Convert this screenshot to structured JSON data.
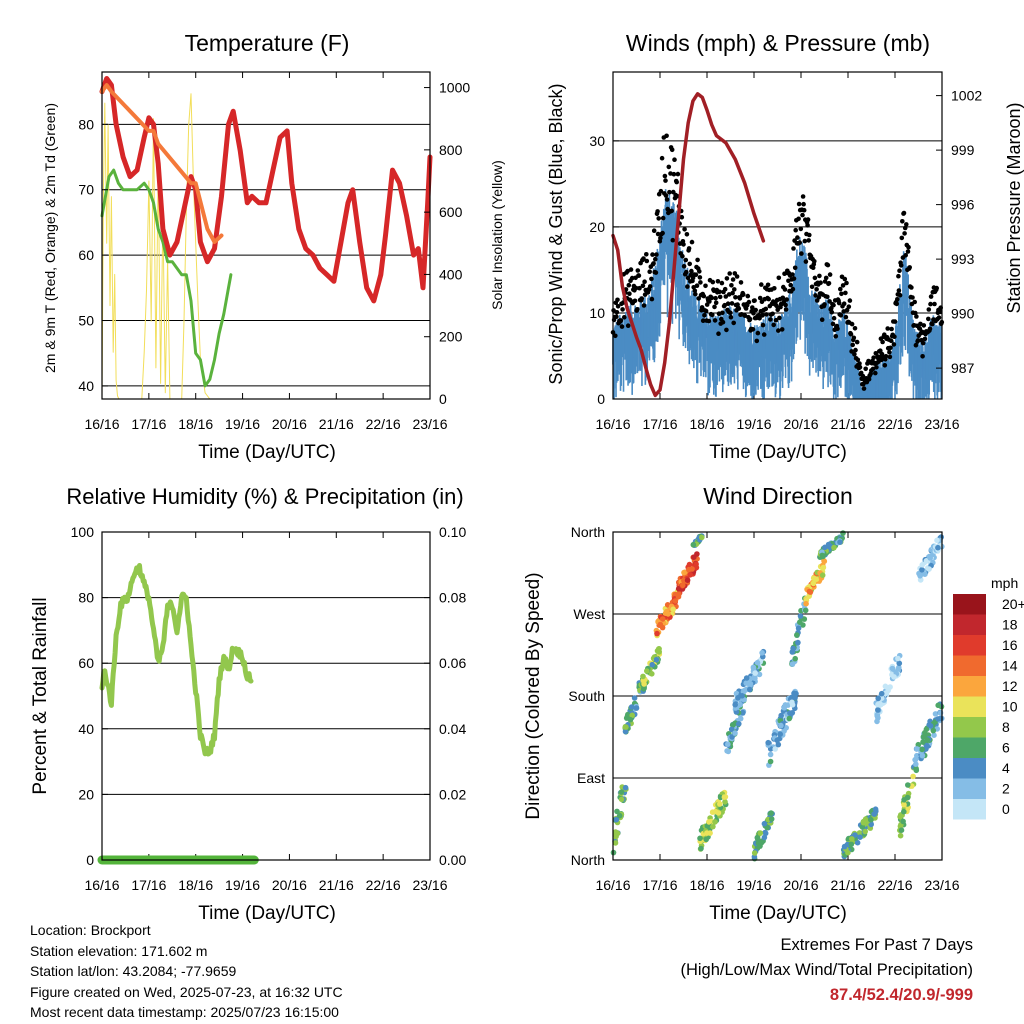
{
  "figure": {
    "location": "Location: Brockport",
    "elevation": "Station elevation: 171.602 m",
    "latlon": "Station lat/lon: 43.2084; -77.9659",
    "created": "Figure created on Wed, 2025-07-23, at 16:32 UTC",
    "recent": "Most recent data timestamp: 2025/07/23 16:15:00",
    "extremes_title": "Extremes For Past 7 Days",
    "extremes_subtitle": "(High/Low/Max Wind/Total Precipitation)",
    "extremes_values": "87.4/52.4/20.9/-999"
  },
  "chart_data": [
    {
      "id": "temperature",
      "type": "line",
      "title": "Temperature (F)",
      "xlabel": "Time (Day/UTC)",
      "ylabel": "2m & 9m T (Red, Orange) & 2m Td (Green)",
      "y2label": "Solar Insolation (Yellow)",
      "x_ticks": [
        "16/16",
        "17/16",
        "18/16",
        "19/16",
        "20/16",
        "21/16",
        "22/16",
        "23/16"
      ],
      "xlim": [
        0,
        7
      ],
      "ylim": [
        38,
        88
      ],
      "y_ticks": [
        40,
        50,
        60,
        70,
        80
      ],
      "y2lim": [
        0,
        1050
      ],
      "y2_ticks": [
        0,
        200,
        400,
        600,
        800,
        1000
      ],
      "grid": "horizontal",
      "series": [
        {
          "color": "#d62728",
          "x": [
            0.0,
            0.1,
            0.2,
            0.3,
            0.45,
            0.6,
            0.75,
            0.9,
            1.0,
            1.1,
            1.2,
            1.3,
            1.45,
            1.6,
            1.75,
            1.9,
            2.0,
            2.1,
            2.25,
            2.4,
            2.55,
            2.7,
            2.8,
            2.95,
            3.1,
            3.2,
            3.35,
            3.5,
            3.65,
            3.8,
            3.95,
            4.05,
            4.2,
            4.35,
            4.5,
            4.65,
            4.8,
            4.95,
            5.1,
            5.25,
            5.35,
            5.5,
            5.65,
            5.8,
            5.95,
            6.05,
            6.2,
            6.35,
            6.5,
            6.65,
            6.75,
            6.85,
            6.95,
            7.0
          ],
          "y": [
            85,
            87,
            86,
            80,
            75,
            72,
            73,
            78,
            81,
            80,
            74,
            64,
            60,
            62,
            67,
            72,
            70,
            62,
            59,
            61,
            69,
            80,
            82,
            76,
            68,
            69,
            68,
            68,
            73,
            78,
            79,
            71,
            64,
            61,
            60,
            58,
            57,
            56,
            62,
            68,
            70,
            62,
            55,
            53,
            57,
            63,
            73,
            71,
            66,
            60,
            61,
            55,
            68,
            75
          ]
        },
        {
          "color": "#f4793a",
          "x": [
            0.0,
            0.1,
            0.2,
            1.0,
            1.1,
            1.2,
            1.9,
            2.0,
            2.25,
            2.4,
            2.55
          ],
          "y": [
            85,
            86,
            85,
            79,
            79,
            77,
            71,
            71,
            64,
            62,
            63
          ]
        },
        {
          "color": "#5ab23d",
          "x": [
            0.0,
            0.05,
            0.15,
            0.25,
            0.35,
            0.45,
            0.6,
            0.75,
            0.9,
            1.0,
            1.1,
            1.2,
            1.3,
            1.4,
            1.5,
            1.6,
            1.7,
            1.8,
            1.9,
            2.0,
            2.1,
            2.2,
            2.3,
            2.4,
            2.5,
            2.6,
            2.7,
            2.75
          ],
          "y": [
            66,
            68,
            72,
            73,
            71,
            70,
            70,
            70,
            71,
            70,
            68,
            64,
            62,
            59,
            59,
            58,
            57,
            57,
            53,
            45,
            44,
            40,
            41,
            44,
            48,
            51,
            55,
            57
          ]
        }
      ],
      "insolation": {
        "color": "#f2de5a",
        "x": [
          0.0,
          0.03,
          0.06,
          0.1,
          0.13,
          0.17,
          0.2,
          0.24,
          0.27,
          0.3,
          0.33,
          0.36,
          0.4,
          0.45,
          0.55,
          0.7,
          0.85,
          0.9,
          0.95,
          1.0,
          1.05,
          1.1,
          1.15,
          1.2,
          1.25,
          1.3,
          1.35,
          1.4,
          1.45,
          1.5,
          1.6,
          1.7,
          1.75,
          1.8,
          1.85,
          1.9,
          1.95,
          2.0,
          2.05,
          2.1,
          2.2,
          2.3,
          2.5,
          2.7
        ],
        "y": [
          0,
          650,
          950,
          500,
          880,
          300,
          650,
          150,
          400,
          60,
          10,
          0,
          0,
          0,
          0,
          0,
          0,
          150,
          350,
          700,
          250,
          900,
          100,
          750,
          50,
          600,
          20,
          450,
          0,
          0,
          0,
          0,
          250,
          600,
          880,
          980,
          700,
          500,
          300,
          130,
          20,
          0,
          0,
          0
        ]
      }
    },
    {
      "id": "winds",
      "type": "scatter",
      "title": "Winds (mph) & Pressure (mb)",
      "xlabel": "Time (Day/UTC)",
      "ylabel": "Sonic/Prop Wind & Gust (Blue, Black)",
      "y2label": "Station Pressure (Maroon)",
      "x_ticks": [
        "16/16",
        "17/16",
        "18/16",
        "19/16",
        "20/16",
        "21/16",
        "22/16",
        "23/16"
      ],
      "xlim": [
        0,
        7
      ],
      "ylim": [
        0,
        38
      ],
      "y_ticks": [
        0,
        10,
        20,
        30
      ],
      "y2lim": [
        985.3,
        1003.3
      ],
      "y2_ticks": [
        987,
        990,
        993,
        996,
        999,
        1002
      ],
      "grid": "horizontal",
      "wind_envelope": {
        "x": [
          0.0,
          0.3,
          0.6,
          0.8,
          0.9,
          1.0,
          1.1,
          1.2,
          1.35,
          1.5,
          1.7,
          1.9,
          2.2,
          2.5,
          2.8,
          3.0,
          3.3,
          3.6,
          3.8,
          3.9,
          4.0,
          4.1,
          4.2,
          4.4,
          4.6,
          4.7,
          4.9,
          5.1,
          5.3,
          5.5,
          5.7,
          5.9,
          6.0,
          6.1,
          6.2,
          6.4,
          6.6,
          6.8,
          7.0
        ],
        "y": [
          8,
          10,
          11,
          12,
          15,
          18,
          24,
          22,
          20,
          16,
          12,
          10,
          9,
          10,
          9,
          8,
          9,
          9,
          12,
          16,
          18,
          16,
          13,
          10,
          11,
          7,
          10,
          6,
          1,
          3,
          4,
          5,
          7,
          12,
          17,
          8,
          6,
          9,
          8
        ]
      },
      "pressure": {
        "color": "#a11f25",
        "x": [
          0.0,
          0.1,
          0.2,
          0.3,
          0.4,
          0.5,
          0.6,
          0.7,
          0.8,
          0.9,
          1.0,
          1.1,
          1.2,
          1.3,
          1.4,
          1.5,
          1.6,
          1.7,
          1.8,
          1.9,
          2.0,
          2.1,
          2.2,
          2.4,
          2.6,
          2.8,
          3.0,
          3.2
        ],
        "y": [
          994.3,
          993.5,
          991.5,
          990.3,
          989.5,
          988.7,
          988.0,
          987.0,
          986.1,
          985.5,
          985.8,
          987.3,
          989.5,
          992.5,
          995.5,
          998.5,
          1000.5,
          1001.7,
          1002.1,
          1001.9,
          1001.2,
          1000.4,
          999.8,
          999.4,
          998.5,
          997.2,
          995.5,
          994.0
        ]
      }
    },
    {
      "id": "humidity",
      "type": "line",
      "title": "Relative Humidity (%) & Precipitation (in)",
      "xlabel": "Time (Day/UTC)",
      "ylabel": "Percent & Total Rainfall",
      "x_ticks": [
        "16/16",
        "17/16",
        "18/16",
        "19/16",
        "20/16",
        "21/16",
        "22/16",
        "23/16"
      ],
      "xlim": [
        0,
        7
      ],
      "ylim": [
        0,
        100
      ],
      "y_ticks": [
        0,
        20,
        40,
        60,
        80,
        100
      ],
      "y2lim": [
        0,
        0.1
      ],
      "y2_ticks": [
        "0.00",
        "0.02",
        "0.04",
        "0.06",
        "0.08",
        "0.10"
      ],
      "grid": "horizontal",
      "series": [
        {
          "color": "#92c74d",
          "x": [
            0.0,
            0.05,
            0.1,
            0.2,
            0.3,
            0.4,
            0.55,
            0.7,
            0.8,
            0.9,
            1.0,
            1.1,
            1.2,
            1.3,
            1.4,
            1.5,
            1.6,
            1.7,
            1.8,
            1.9,
            2.0,
            2.1,
            2.2,
            2.3,
            2.4,
            2.5,
            2.6,
            2.7,
            2.8,
            3.0,
            3.1,
            3.2
          ],
          "y": [
            52,
            58,
            55,
            48,
            68,
            78,
            80,
            88,
            89,
            84,
            80,
            70,
            60,
            65,
            77,
            78,
            70,
            80,
            80,
            65,
            52,
            38,
            33,
            33,
            38,
            55,
            62,
            58,
            65,
            62,
            56,
            55
          ]
        },
        {
          "color": "#53b43a",
          "x": [
            0.0,
            3.25
          ],
          "y": [
            0,
            0
          ]
        }
      ]
    },
    {
      "id": "direction",
      "type": "scatter",
      "title": "Wind Direction",
      "xlabel": "Time (Day/UTC)",
      "ylabel": "Direction (Colored By Speed)",
      "x_ticks": [
        "16/16",
        "17/16",
        "18/16",
        "19/16",
        "20/16",
        "21/16",
        "22/16",
        "23/16"
      ],
      "xlim": [
        0,
        7
      ],
      "ylim": [
        0,
        360
      ],
      "y_ticks": [
        "North",
        "East",
        "South",
        "West",
        "North"
      ],
      "grid": "horizontal",
      "legend_title": "mph",
      "legend_labels": [
        "20+",
        "18",
        "16",
        "14",
        "12",
        "10",
        "8",
        "6",
        "4",
        "2",
        "0"
      ],
      "legend_colors": [
        "#99141b",
        "#c1272d",
        "#e03b2c",
        "#f06a2e",
        "#fba63d",
        "#eae35a",
        "#93c84b",
        "#4ea768",
        "#4b8cc4",
        "#85bde6",
        "#c4e6f7"
      ],
      "clusters": [
        {
          "x0": 0.0,
          "x1": 0.3,
          "d0": 0,
          "d1": 110,
          "v": 6
        },
        {
          "x0": 0.25,
          "x1": 0.6,
          "d0": 130,
          "d1": 200,
          "v": 5
        },
        {
          "x0": 0.6,
          "x1": 1.0,
          "d0": 180,
          "d1": 240,
          "v": 7
        },
        {
          "x0": 0.9,
          "x1": 1.4,
          "d0": 240,
          "d1": 300,
          "v": 13
        },
        {
          "x0": 1.3,
          "x1": 1.8,
          "d0": 280,
          "d1": 340,
          "v": 15
        },
        {
          "x0": 1.7,
          "x1": 1.9,
          "d0": 340,
          "d1": 360,
          "v": 6
        },
        {
          "x0": 1.85,
          "x1": 2.4,
          "d0": 10,
          "d1": 80,
          "v": 8
        },
        {
          "x0": 2.4,
          "x1": 2.8,
          "d0": 110,
          "d1": 190,
          "v": 4
        },
        {
          "x0": 2.6,
          "x1": 3.2,
          "d0": 160,
          "d1": 230,
          "v": 3
        },
        {
          "x0": 3.0,
          "x1": 3.4,
          "d0": 0,
          "d1": 60,
          "v": 6
        },
        {
          "x0": 3.3,
          "x1": 3.9,
          "d0": 100,
          "d1": 200,
          "v": 3
        },
        {
          "x0": 3.8,
          "x1": 4.1,
          "d0": 200,
          "d1": 300,
          "v": 4
        },
        {
          "x0": 4.1,
          "x1": 4.5,
          "d0": 280,
          "d1": 330,
          "v": 11
        },
        {
          "x0": 4.4,
          "x1": 4.9,
          "d0": 330,
          "d1": 360,
          "v": 5
        },
        {
          "x0": 4.9,
          "x1": 5.6,
          "d0": 0,
          "d1": 60,
          "v": 6
        },
        {
          "x0": 5.6,
          "x1": 6.1,
          "d0": 150,
          "d1": 230,
          "v": 1
        },
        {
          "x0": 6.1,
          "x1": 6.4,
          "d0": 20,
          "d1": 110,
          "v": 8
        },
        {
          "x0": 6.4,
          "x1": 7.0,
          "d0": 90,
          "d1": 180,
          "v": 4
        },
        {
          "x0": 6.5,
          "x1": 7.0,
          "d0": 300,
          "d1": 360,
          "v": 1
        }
      ]
    }
  ]
}
